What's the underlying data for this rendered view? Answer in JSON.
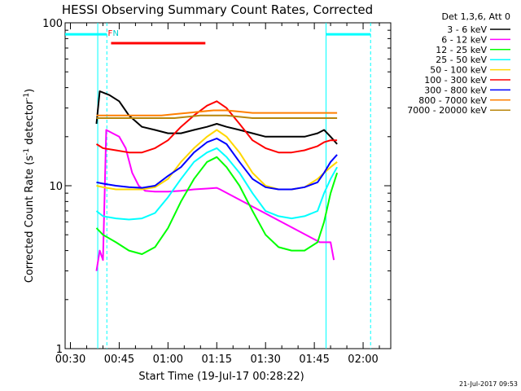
{
  "chart_data": {
    "type": "line",
    "title": "HESSI Observing Summary Count Rates, Corrected",
    "xlabel": "Start Time (19-Jul-17 00:28:22)",
    "ylabel_main": "Corrected Count Rate (s",
    "ylabel_sup1": "-1",
    "ylabel_mid": " detector",
    "ylabel_sup2": "-1",
    "ylabel_end": ")",
    "footer_date": "21-Jul-2017 09:53",
    "x_unit": "minutes after 00:00",
    "xlim": [
      28.37,
      128.5
    ],
    "ylim": [
      1,
      100
    ],
    "yscale": "log",
    "x_ticks": [
      {
        "value": 30,
        "label": "00:30"
      },
      {
        "value": 45,
        "label": "00:45"
      },
      {
        "value": 60,
        "label": "01:00"
      },
      {
        "value": 75,
        "label": "01:15"
      },
      {
        "value": 90,
        "label": "01:30"
      },
      {
        "value": 105,
        "label": "01:45"
      },
      {
        "value": 120,
        "label": "02:00"
      }
    ],
    "y_ticks": [
      {
        "value": 1,
        "label": "1"
      },
      {
        "value": 10,
        "label": "10"
      },
      {
        "value": 100,
        "label": "100"
      }
    ],
    "legend_header": "Det 1,3,6, Att 0",
    "legend_position": "right",
    "series": [
      {
        "name": "3 - 6 keV",
        "color": "#000000",
        "points": [
          [
            38,
            24
          ],
          [
            39,
            38
          ],
          [
            42,
            36
          ],
          [
            45,
            33
          ],
          [
            48,
            27
          ],
          [
            52,
            23
          ],
          [
            56,
            22
          ],
          [
            60,
            21
          ],
          [
            64,
            21
          ],
          [
            68,
            22
          ],
          [
            72,
            23
          ],
          [
            75,
            24
          ],
          [
            78,
            23
          ],
          [
            82,
            22
          ],
          [
            86,
            21
          ],
          [
            90,
            20
          ],
          [
            94,
            20
          ],
          [
            98,
            20
          ],
          [
            102,
            20
          ],
          [
            106,
            21
          ],
          [
            108,
            22
          ],
          [
            110,
            20
          ],
          [
            112,
            18
          ]
        ]
      },
      {
        "name": "6 - 12 keV",
        "color": "#ff00ff",
        "points": [
          [
            38,
            3
          ],
          [
            39,
            4
          ],
          [
            40,
            3.5
          ],
          [
            41,
            22
          ],
          [
            43,
            21
          ],
          [
            45,
            20
          ],
          [
            47,
            17
          ],
          [
            49,
            12
          ],
          [
            51,
            10
          ],
          [
            53,
            9.3
          ],
          [
            56,
            9.2
          ],
          [
            60,
            9.2
          ],
          [
            64,
            9.3
          ],
          [
            68,
            9.5
          ],
          [
            72,
            9.6
          ],
          [
            75,
            9.7
          ],
          [
            76,
            9.5
          ],
          [
            106.7,
            4.5
          ],
          [
            109,
            4.5
          ],
          [
            110,
            4.5
          ],
          [
            111,
            3.5
          ]
        ]
      },
      {
        "name": "12 - 25 keV",
        "color": "#00ff00",
        "points": [
          [
            38,
            5.5
          ],
          [
            40,
            5
          ],
          [
            44,
            4.5
          ],
          [
            48,
            4
          ],
          [
            52,
            3.8
          ],
          [
            56,
            4.2
          ],
          [
            60,
            5.5
          ],
          [
            64,
            8
          ],
          [
            68,
            11
          ],
          [
            72,
            14
          ],
          [
            75,
            15
          ],
          [
            78,
            13
          ],
          [
            82,
            10
          ],
          [
            86,
            7
          ],
          [
            90,
            5
          ],
          [
            94,
            4.2
          ],
          [
            98,
            4
          ],
          [
            102,
            4
          ],
          [
            106,
            4.5
          ],
          [
            108,
            6
          ],
          [
            110,
            9
          ],
          [
            112,
            12
          ]
        ]
      },
      {
        "name": "25 - 50 keV",
        "color": "#00ffff",
        "points": [
          [
            38,
            7
          ],
          [
            40,
            6.5
          ],
          [
            44,
            6.3
          ],
          [
            48,
            6.2
          ],
          [
            52,
            6.3
          ],
          [
            56,
            6.8
          ],
          [
            60,
            8.5
          ],
          [
            64,
            11
          ],
          [
            68,
            14
          ],
          [
            72,
            16
          ],
          [
            75,
            17
          ],
          [
            78,
            15
          ],
          [
            82,
            12
          ],
          [
            86,
            9
          ],
          [
            90,
            7
          ],
          [
            94,
            6.5
          ],
          [
            98,
            6.3
          ],
          [
            102,
            6.5
          ],
          [
            106,
            7
          ],
          [
            108,
            9
          ],
          [
            110,
            11
          ],
          [
            112,
            13
          ]
        ]
      },
      {
        "name": "50 - 100 keV",
        "color": "#ffd700",
        "points": [
          [
            38,
            10
          ],
          [
            40,
            9.8
          ],
          [
            44,
            9.5
          ],
          [
            48,
            9.5
          ],
          [
            52,
            9.5
          ],
          [
            56,
            9.8
          ],
          [
            60,
            11
          ],
          [
            64,
            14
          ],
          [
            68,
            17
          ],
          [
            72,
            20
          ],
          [
            75,
            22
          ],
          [
            78,
            20
          ],
          [
            82,
            16
          ],
          [
            86,
            12
          ],
          [
            90,
            10
          ],
          [
            94,
            9.5
          ],
          [
            98,
            9.5
          ],
          [
            102,
            9.8
          ],
          [
            106,
            11
          ],
          [
            108,
            12
          ],
          [
            110,
            13
          ],
          [
            112,
            14
          ]
        ]
      },
      {
        "name": "100 - 300 keV",
        "color": "#ff0000",
        "points": [
          [
            38,
            18
          ],
          [
            40,
            17
          ],
          [
            44,
            16.5
          ],
          [
            48,
            16
          ],
          [
            52,
            16
          ],
          [
            56,
            17
          ],
          [
            60,
            19
          ],
          [
            64,
            23
          ],
          [
            68,
            27
          ],
          [
            72,
            31
          ],
          [
            75,
            33
          ],
          [
            78,
            30
          ],
          [
            82,
            24
          ],
          [
            86,
            19
          ],
          [
            90,
            17
          ],
          [
            94,
            16
          ],
          [
            98,
            16
          ],
          [
            102,
            16.5
          ],
          [
            106,
            17.5
          ],
          [
            108,
            18.5
          ],
          [
            110,
            19
          ],
          [
            112,
            19
          ]
        ]
      },
      {
        "name": "300 - 800 keV",
        "color": "#0000ff",
        "points": [
          [
            38,
            10.5
          ],
          [
            40,
            10.3
          ],
          [
            44,
            10
          ],
          [
            48,
            9.8
          ],
          [
            52,
            9.7
          ],
          [
            56,
            10
          ],
          [
            60,
            11.5
          ],
          [
            64,
            13
          ],
          [
            68,
            16
          ],
          [
            72,
            18.5
          ],
          [
            75,
            19.5
          ],
          [
            78,
            18
          ],
          [
            82,
            14
          ],
          [
            86,
            11
          ],
          [
            90,
            9.8
          ],
          [
            94,
            9.5
          ],
          [
            98,
            9.5
          ],
          [
            102,
            9.8
          ],
          [
            106,
            10.5
          ],
          [
            108,
            12
          ],
          [
            110,
            14
          ],
          [
            112,
            15.5
          ]
        ]
      },
      {
        "name": "800 - 7000 keV",
        "color": "#ff7f00",
        "points": [
          [
            38,
            27
          ],
          [
            42,
            27
          ],
          [
            46,
            27
          ],
          [
            50,
            27
          ],
          [
            54,
            27
          ],
          [
            58,
            27
          ],
          [
            62,
            27.5
          ],
          [
            66,
            28
          ],
          [
            70,
            28.5
          ],
          [
            74,
            29
          ],
          [
            78,
            29
          ],
          [
            82,
            28.5
          ],
          [
            86,
            28
          ],
          [
            90,
            28
          ],
          [
            94,
            28
          ],
          [
            98,
            28
          ],
          [
            102,
            28
          ],
          [
            106,
            28
          ],
          [
            110,
            28
          ],
          [
            112,
            28
          ]
        ]
      },
      {
        "name": "7000 - 20000 keV",
        "color": "#b8860b",
        "points": [
          [
            38,
            26
          ],
          [
            42,
            26
          ],
          [
            46,
            26
          ],
          [
            50,
            26
          ],
          [
            54,
            26
          ],
          [
            58,
            26
          ],
          [
            62,
            26
          ],
          [
            66,
            26.5
          ],
          [
            70,
            27
          ],
          [
            74,
            27
          ],
          [
            78,
            27
          ],
          [
            82,
            26.5
          ],
          [
            86,
            26
          ],
          [
            90,
            26
          ],
          [
            94,
            26
          ],
          [
            98,
            26
          ],
          [
            102,
            26
          ],
          [
            106,
            26
          ],
          [
            110,
            26
          ],
          [
            112,
            26
          ]
        ]
      }
    ],
    "annotations": [
      {
        "label": "N",
        "color": "#00cccc",
        "x": 43
      },
      {
        "label": "F",
        "color": "#ff0000",
        "x": 41.5
      }
    ],
    "flare_bar": {
      "color": "#ff0000",
      "x_start": 42.5,
      "x_end": 71.5,
      "y": 75
    },
    "night_bars": [
      {
        "color": "#00ffff",
        "x_start": 28.37,
        "x_end": 41.2,
        "y": 85
      },
      {
        "color": "#00ffff",
        "x_start": 108.6,
        "x_end": 122.3,
        "y": 85
      }
    ],
    "saa_lines": [
      {
        "color": "#00ffff",
        "style": "dashed",
        "x": 41.2
      },
      {
        "color": "#00ffff",
        "style": "solid",
        "x": 108.6
      },
      {
        "color": "#00ffff",
        "style": "dashed",
        "x": 122.3
      },
      {
        "color": "#00ffff",
        "style": "solid",
        "x": 38.4
      }
    ]
  }
}
